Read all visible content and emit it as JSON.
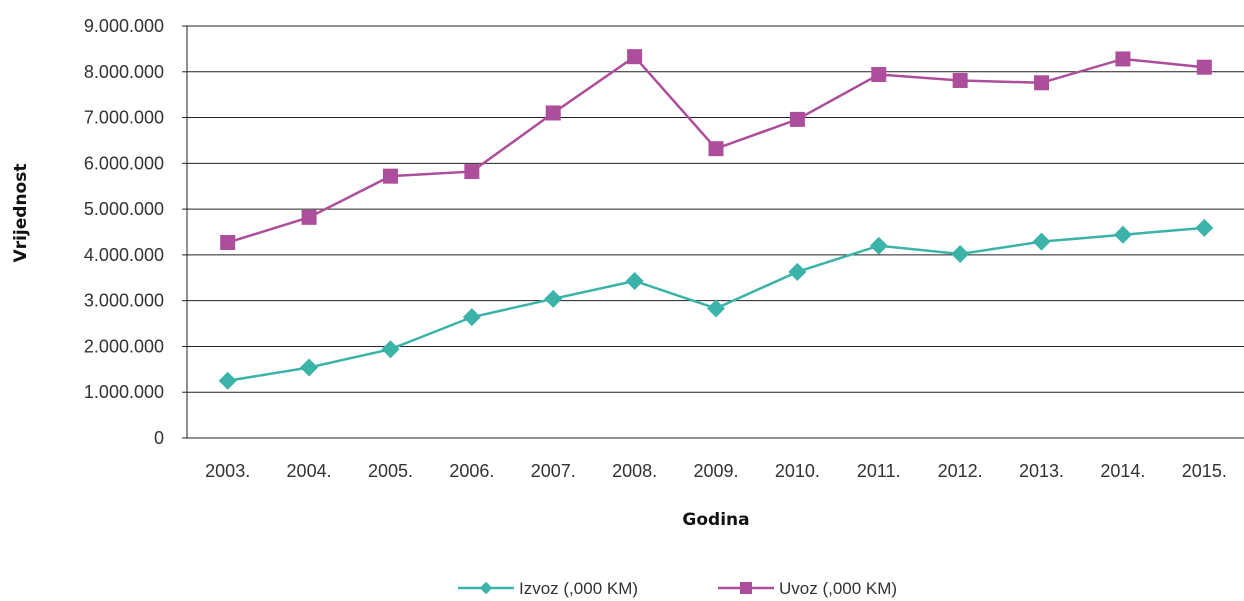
{
  "chart_data": {
    "type": "line",
    "title": "",
    "xlabel": "Godina",
    "ylabel": "Vrijednost",
    "categories": [
      "2003.",
      "2004.",
      "2005.",
      "2006.",
      "2007.",
      "2008.",
      "2009.",
      "2010.",
      "2011.",
      "2012.",
      "2013.",
      "2014.",
      "2015."
    ],
    "ylim": [
      0,
      9000000
    ],
    "y_ticks": [
      0,
      1000000,
      2000000,
      3000000,
      4000000,
      5000000,
      6000000,
      7000000,
      8000000,
      9000000
    ],
    "y_tick_labels": [
      "0",
      "1.000.000",
      "2.000.000",
      "3.000.000",
      "4.000.000",
      "5.000.000",
      "6.000.000",
      "7.000.000",
      "8.000.000",
      "9.000.000"
    ],
    "grid": true,
    "legend_position": "bottom",
    "series": [
      {
        "name": "Izvoz (,000 KM)",
        "color": "#3bb3a9",
        "marker": "diamond",
        "values": [
          1250000,
          1540000,
          1940000,
          2640000,
          3040000,
          3430000,
          2830000,
          3630000,
          4200000,
          4020000,
          4290000,
          4440000,
          4590000
        ]
      },
      {
        "name": "Uvoz (,000 KM)",
        "color": "#ad4e9c",
        "marker": "square",
        "values": [
          4270000,
          4820000,
          5720000,
          5820000,
          7100000,
          8330000,
          6320000,
          6960000,
          7940000,
          7810000,
          7760000,
          8280000,
          8100000
        ]
      }
    ]
  }
}
